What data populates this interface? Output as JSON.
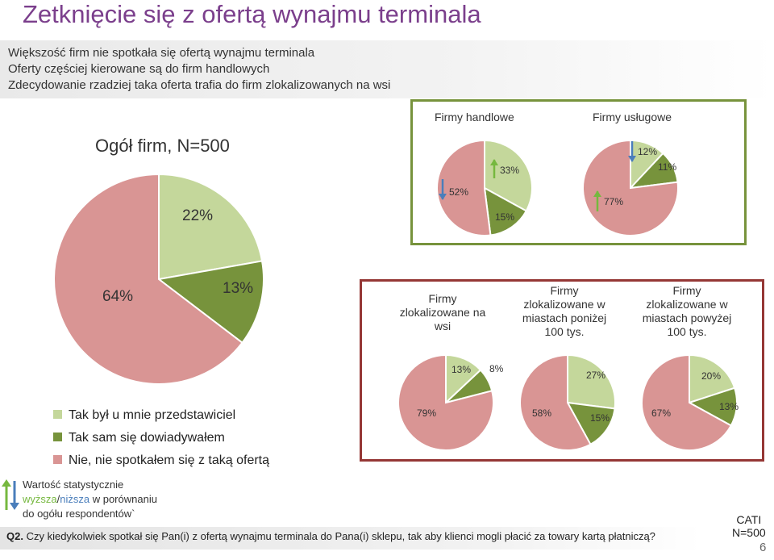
{
  "title": "Zetknięcie się z ofertą wynajmu terminala",
  "intro": [
    "Większość firm nie spotkała się  ofertą wynajmu terminala",
    "Oferty częściej kierowane są do firm handlowych",
    "Zdecydowanie rzadziej taka oferta trafia do firm zlokalizowanych na wsi"
  ],
  "colors": {
    "tak_byl": "#c4d79b",
    "tak_sam": "#77933c",
    "nie": "#d99594",
    "arrow_up": "#4a7ebb",
    "arrow_down": "#76b83f",
    "green_box": "#77933c",
    "red_box": "#953735",
    "title": "#7b3f8c"
  },
  "legend": [
    {
      "label": "Tak był u mnie przedstawiciel",
      "color": "#c4d79b"
    },
    {
      "label": "Tak sam się dowiadywałem",
      "color": "#77933c"
    },
    {
      "label": "Nie, nie spotkałem się z taką ofertą",
      "color": "#d99594"
    }
  ],
  "note": {
    "line1": "Wartość statystycznie",
    "higher": "wyższa",
    "slash": "/",
    "lower": "niższa",
    "rest": " w porównaniu",
    "line3": "do ogółu respondentów`"
  },
  "question": {
    "label": "Q2.",
    "text": " Czy kiedykolwiek spotkał się Pan(i) z ofertą wynajmu terminala do Pana(i) sklepu, tak aby klienci mogli płacić za towary kartą płatniczą?"
  },
  "cati": {
    "line1": "CATI",
    "line2": "N=500"
  },
  "page_number": "6",
  "chart_data": [
    {
      "type": "pie",
      "title": "Ogół firm, N=500",
      "categories": [
        "Tak był u mnie przedstawiciel",
        "Tak sam się dowiadywałem",
        "Nie, nie spotkałem się z taką ofertą"
      ],
      "values": [
        22,
        13,
        64
      ],
      "labels": [
        "22%",
        "13%",
        "64%"
      ]
    },
    {
      "type": "pie",
      "title": "Firmy handlowe",
      "categories": [
        "Tak był u mnie przedstawiciel",
        "Tak sam się dowiadywałem",
        "Nie, nie spotkałem się z taką ofertą"
      ],
      "values": [
        33,
        15,
        52
      ],
      "labels": [
        "33%",
        "15%",
        "52%"
      ],
      "significance": [
        "higher",
        "none",
        "lower"
      ]
    },
    {
      "type": "pie",
      "title": "Firmy usługowe",
      "categories": [
        "Tak był u mnie przedstawiciel",
        "Tak sam się dowiadywałem",
        "Nie, nie spotkałem się z taką ofertą"
      ],
      "values": [
        12,
        11,
        77
      ],
      "labels": [
        "12%",
        "11%",
        "77%"
      ],
      "significance": [
        "lower",
        "none",
        "higher"
      ]
    },
    {
      "type": "pie",
      "title": "Firmy zlokalizowane na wsi",
      "categories": [
        "Tak był u mnie przedstawiciel",
        "Tak sam się dowiadywałem",
        "Nie, nie spotkałem się z taką ofertą"
      ],
      "values": [
        13,
        8,
        79
      ],
      "labels": [
        "13%",
        "8%",
        "79%"
      ]
    },
    {
      "type": "pie",
      "title": "Firmy zlokalizowane w miastach poniżej 100 tys.",
      "categories": [
        "Tak był u mnie przedstawiciel",
        "Tak sam się dowiadywałem",
        "Nie, nie spotkałem się z taką ofertą"
      ],
      "values": [
        27,
        15,
        58
      ],
      "labels": [
        "27%",
        "15%",
        "58%"
      ]
    },
    {
      "type": "pie",
      "title": "Firmy zlokalizowane w miastach powyżej 100 tys.",
      "categories": [
        "Tak był u mnie przedstawiciel",
        "Tak sam się dowiadywałem",
        "Nie, nie spotkałem się z taką ofertą"
      ],
      "values": [
        20,
        13,
        67
      ],
      "labels": [
        "20%",
        "13%",
        "67%"
      ]
    }
  ]
}
